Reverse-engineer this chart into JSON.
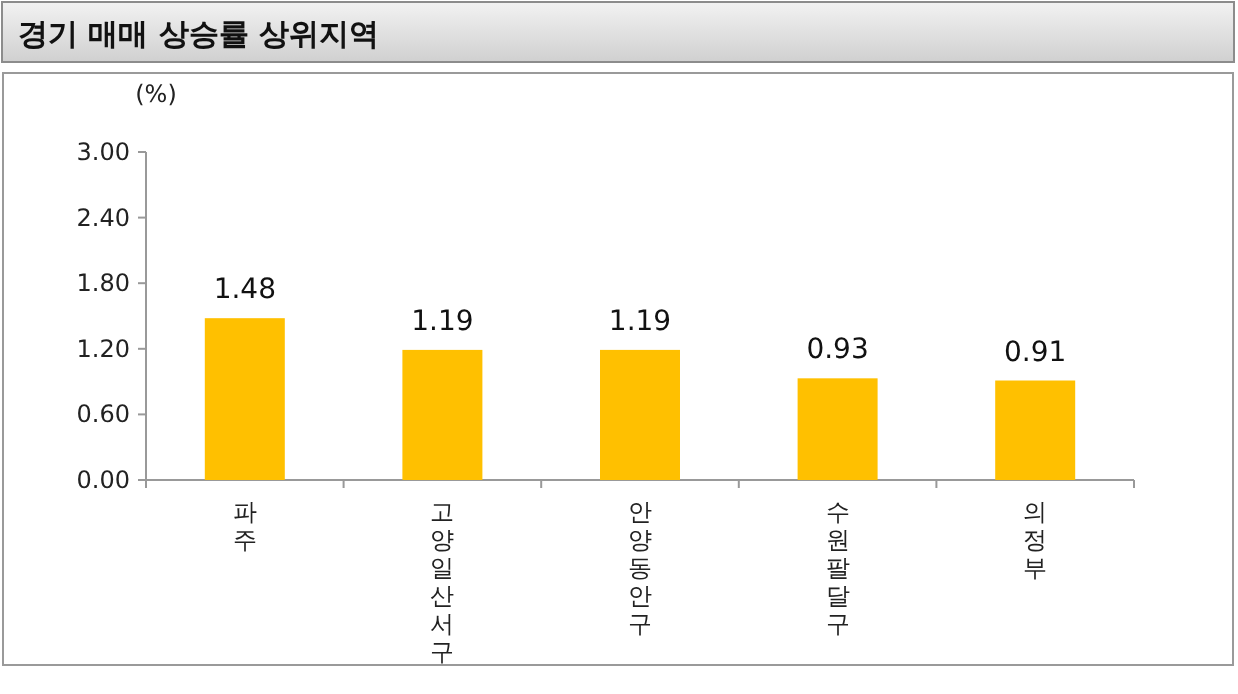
{
  "chart_data": {
    "type": "bar",
    "title": "경기 매매 상승률 상위지역",
    "ylabel": "(%)",
    "categories": [
      "파주",
      "고양일산서구",
      "안양동안구",
      "수원팔달구",
      "의정부"
    ],
    "values": [
      1.48,
      1.19,
      1.19,
      0.93,
      0.91
    ],
    "color": "#ffc000",
    "ylim": [
      0,
      3
    ],
    "yticks": [
      {
        "value": 0,
        "label": "0.00"
      },
      {
        "value": 0.6,
        "label": "0.60"
      },
      {
        "value": 1.2,
        "label": "1.20"
      },
      {
        "value": 1.8,
        "label": "1.80"
      },
      {
        "value": 2.4,
        "label": "2.40"
      },
      {
        "value": 3,
        "label": "3.00"
      }
    ],
    "data_labels": true,
    "grid": false
  }
}
